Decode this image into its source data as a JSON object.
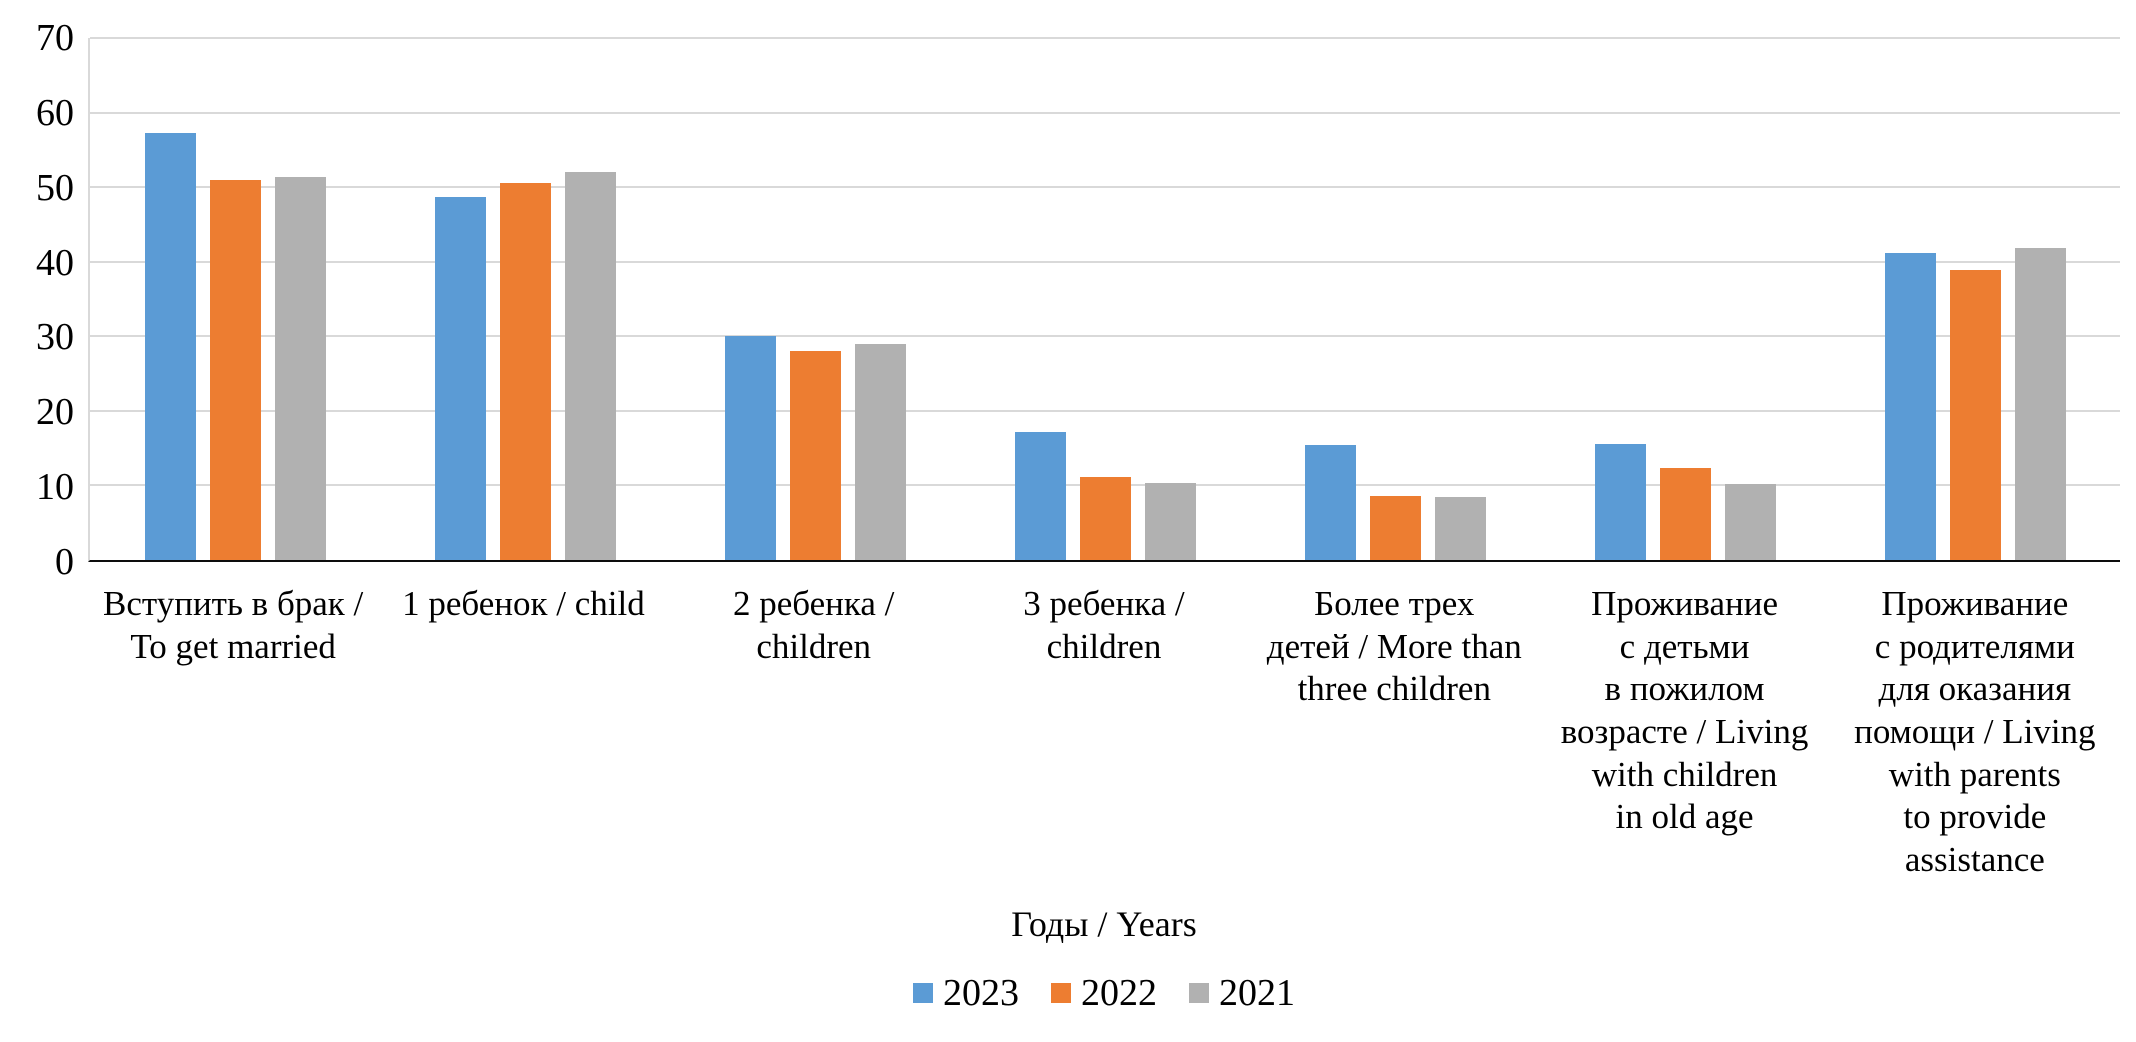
{
  "chart_data": {
    "type": "bar",
    "title": "",
    "xlabel": "Годы / Years",
    "ylabel": "",
    "ylim": [
      0,
      70
    ],
    "yticks": [
      0,
      10,
      20,
      30,
      40,
      50,
      60,
      70
    ],
    "grid": true,
    "grid_color": "#d9d9d9",
    "axis_color": "#0d0d0d",
    "legend_position": "bottom",
    "categories": [
      [
        "Вступить в брак /",
        "To get married"
      ],
      [
        "1 ребенок / child"
      ],
      [
        "2 ребенка /",
        "children"
      ],
      [
        "3 ребенка /",
        "children"
      ],
      [
        "Более трех",
        "детей / More than",
        "three children"
      ],
      [
        "Проживание",
        "с детьми",
        "в пожилом",
        "возрасте / Living",
        "with children",
        "in old age"
      ],
      [
        "Проживание",
        "с родителями",
        "для оказания",
        "помощи / Living",
        "with parents",
        "to provide",
        "assistance"
      ]
    ],
    "series": [
      {
        "name": "2023",
        "color": "#5b9bd5",
        "values": [
          57.3,
          48.7,
          30.1,
          17.1,
          15.4,
          15.5,
          41.2
        ]
      },
      {
        "name": "2022",
        "color": "#ed7d31",
        "values": [
          51.0,
          50.6,
          28.0,
          11.1,
          8.6,
          12.4,
          38.9
        ]
      },
      {
        "name": "2021",
        "color": "#b1b1b1",
        "values": [
          51.3,
          52.0,
          29.0,
          10.3,
          8.4,
          10.2,
          41.8
        ]
      }
    ]
  }
}
